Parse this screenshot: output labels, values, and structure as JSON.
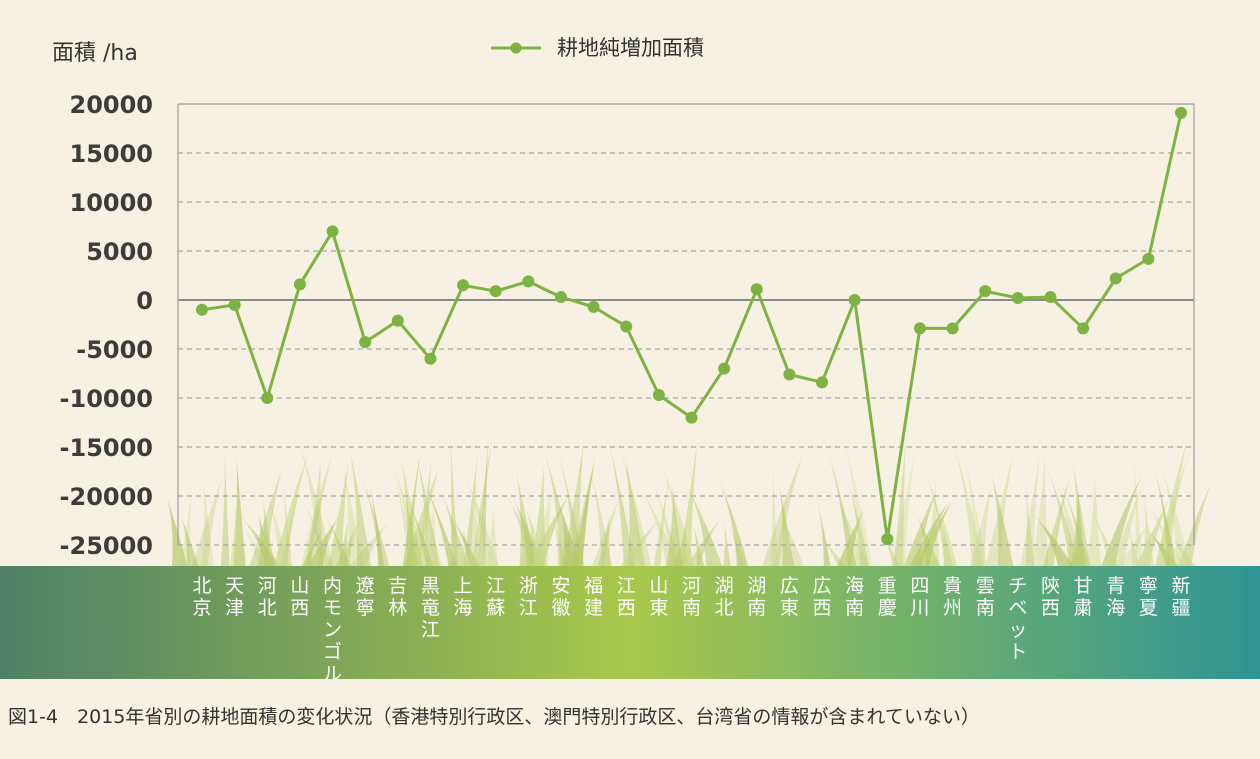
{
  "figure_caption": "図1-4　2015年省別の耕地面積の変化状況（香港特別行政区、澳門特別行政区、台湾省の情報が含まれていない）",
  "colors": {
    "background": "#f7f1e3",
    "series_line": "#7db342",
    "band_left": "#4e8067",
    "band_mid": "#a9c84b",
    "band_right": "#2e9494",
    "grass": "#b5c96a"
  },
  "chart_data": {
    "type": "line",
    "title": "",
    "ylabel": "面積 /ha",
    "xlabel": "",
    "ylim": [
      -25000,
      20000
    ],
    "yticks": [
      20000,
      15000,
      10000,
      5000,
      0,
      -5000,
      -10000,
      -15000,
      -20000,
      -25000
    ],
    "ytick_labels": [
      "20000",
      "15000",
      "10000",
      "5000",
      "0",
      "-5000",
      "-10000",
      "-15000",
      "-20000",
      "-25000"
    ],
    "grid": true,
    "legend_position": "top-center",
    "categories": [
      "北京",
      "天津",
      "河北",
      "山西",
      "内モンゴル",
      "遼寧",
      "吉林",
      "黒竜江",
      "上海",
      "江蘇",
      "浙江",
      "安徽",
      "福建",
      "江西",
      "山東",
      "河南",
      "湖北",
      "湖南",
      "広東",
      "広西",
      "海南",
      "重慶",
      "四川",
      "貴州",
      "雲南",
      "チベット",
      "陝西",
      "甘粛",
      "青海",
      "寧夏",
      "新疆"
    ],
    "series": [
      {
        "name": "耕地純増加面積",
        "values": [
          -1000,
          -500,
          -10000,
          1600,
          7000,
          -4300,
          -2100,
          -6000,
          1500,
          900,
          1900,
          300,
          -700,
          -2700,
          -9700,
          -12000,
          -7000,
          1100,
          -7600,
          -8400,
          0,
          -24400,
          -2900,
          -2900,
          900,
          200,
          300,
          -2900,
          2200,
          4200,
          19100
        ]
      }
    ]
  }
}
